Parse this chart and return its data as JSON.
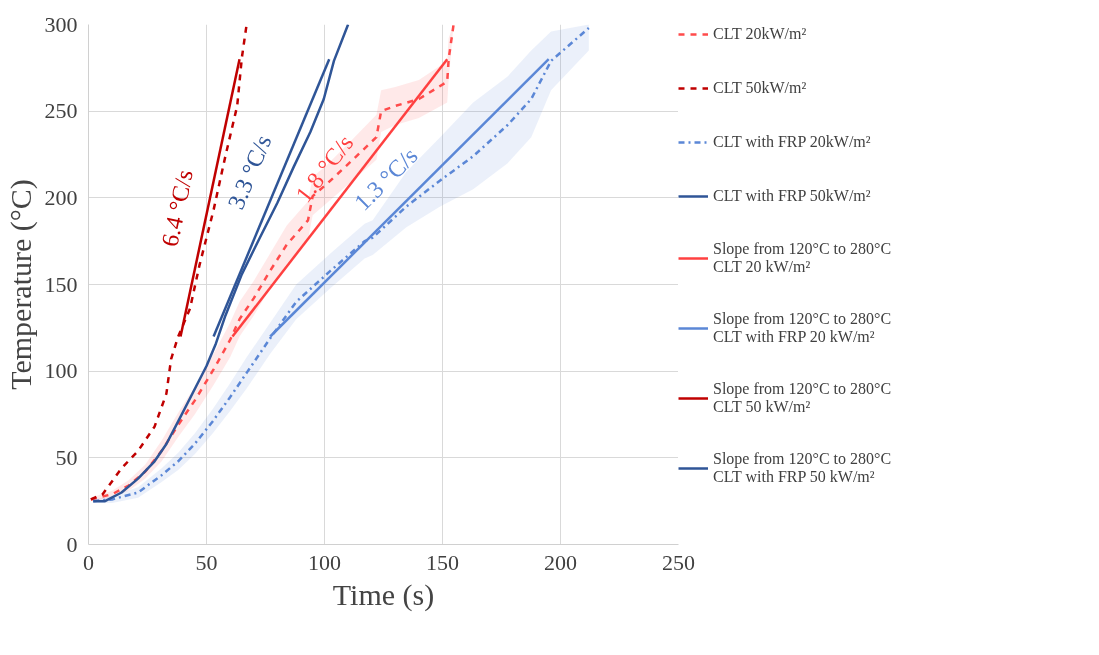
{
  "chart_data": {
    "type": "line",
    "xlabel": "Time (s)",
    "ylabel": "Temperature (°C)",
    "xlim": [
      0,
      250
    ],
    "xticks": [
      0,
      50,
      100,
      150,
      200,
      250
    ],
    "ylim": [
      0,
      300
    ],
    "yticks": [
      0,
      50,
      100,
      150,
      200,
      250,
      300
    ],
    "grid": true,
    "legend": "right",
    "series": [
      {
        "name": "CLT 20kW/m²",
        "color": "#ff4b4b",
        "line_style": "dashed",
        "x": [
          1,
          10,
          17,
          24,
          31,
          38,
          45,
          53,
          60,
          64,
          70,
          77,
          84,
          93,
          95,
          101,
          112,
          122,
          124,
          130,
          140,
          152,
          152.6,
          154.7
        ],
        "values": [
          26,
          29,
          34,
          42,
          54,
          69,
          83,
          101,
          118,
          130,
          142,
          158,
          173,
          187,
          201,
          208,
          222,
          235,
          250,
          253,
          257,
          267,
          280,
          300
        ],
        "lower": [
          25,
          27,
          31,
          38,
          48,
          62,
          75,
          92,
          108,
          120,
          132,
          148,
          162,
          176,
          190,
          197,
          210,
          222,
          238,
          242,
          246,
          255,
          268,
          300
        ],
        "upper": [
          27,
          31,
          37,
          46,
          60,
          76,
          91,
          110,
          128,
          140,
          152,
          168,
          184,
          198,
          212,
          219,
          234,
          248,
          262,
          264,
          268,
          279,
          292,
          300
        ]
      },
      {
        "name": "CLT 50kW/m²",
        "color": "#c00000",
        "line_style": "dashed",
        "x": [
          1,
          6,
          14,
          21,
          28,
          33,
          35,
          38,
          43,
          47,
          53,
          58,
          63,
          65,
          67
        ],
        "values": [
          26,
          29,
          44,
          54,
          68,
          87,
          107,
          120,
          136,
          161,
          193,
          224,
          253,
          281,
          300
        ]
      },
      {
        "name": "CLT with FRP 20kW/m²",
        "color": "#5b87d6",
        "line_style": "dashdot",
        "x": [
          2,
          10,
          21,
          31,
          38,
          45,
          52.6,
          60,
          67,
          77,
          88,
          102.6,
          117,
          120.4,
          134.7,
          149,
          163,
          177.6,
          187.6,
          196,
          212
        ],
        "values": [
          25,
          26,
          30,
          40,
          48,
          58,
          71,
          85,
          99,
          119,
          140,
          158,
          175,
          177,
          195,
          210,
          224,
          242,
          257,
          279,
          298
        ],
        "lower": [
          24,
          24,
          27,
          36,
          43,
          52,
          64,
          77,
          90,
          110,
          130,
          148,
          165,
          167,
          183,
          195,
          205,
          220,
          235,
          262,
          285
        ],
        "upper": [
          26,
          28,
          33,
          44,
          53,
          64,
          78,
          93,
          108,
          128,
          150,
          168,
          185,
          187,
          215,
          235,
          255,
          270,
          285,
          296,
          300
        ]
      },
      {
        "name": "CLT with FRP 50kW/m²",
        "color": "#2f5597",
        "line_style": "solid",
        "x": [
          2,
          7,
          14,
          21,
          28,
          33,
          38,
          44,
          50,
          54,
          58,
          65,
          72.6,
          80,
          87,
          94,
          99.7,
          104,
          110
        ],
        "values": [
          25,
          25,
          30,
          38,
          48,
          58,
          71,
          87,
          103,
          116,
          132,
          156,
          177,
          197,
          218,
          238,
          257,
          279,
          300
        ]
      },
      {
        "name": "Slope from 120°C to 280°C\nCLT 20 kW/m²",
        "color": "#ff4040",
        "line_style": "solid",
        "x": [
          61,
          152
        ],
        "values": [
          120,
          280
        ]
      },
      {
        "name": "Slope from 120°C to 280°C\nCLT with FRP 20 kW/m²",
        "color": "#5b87d6",
        "line_style": "solid",
        "x": [
          77,
          195
        ],
        "values": [
          120,
          280
        ]
      },
      {
        "name": "Slope from 120°C to 280°C\nCLT 50 kW/m²",
        "color": "#c00000",
        "line_style": "solid",
        "x": [
          39,
          64
        ],
        "values": [
          120,
          280
        ]
      },
      {
        "name": "Slope from 120°C to 280°C\nCLT with FRP 50 kW/m²",
        "color": "#2f5597",
        "line_style": "solid",
        "x": [
          53,
          102
        ],
        "values": [
          120,
          280
        ]
      }
    ],
    "annotations": [
      {
        "text": "6.4 °C/s",
        "x": 50,
        "y": 190.4
      },
      {
        "text": "3.3 °C/s",
        "x": 80,
        "y": 208.2
      },
      {
        "text": "1.8 °C/s",
        "x": 110,
        "y": 206.2
      },
      {
        "text": "1.3 °C/s",
        "x": 135,
        "y": 198.6
      }
    ]
  }
}
